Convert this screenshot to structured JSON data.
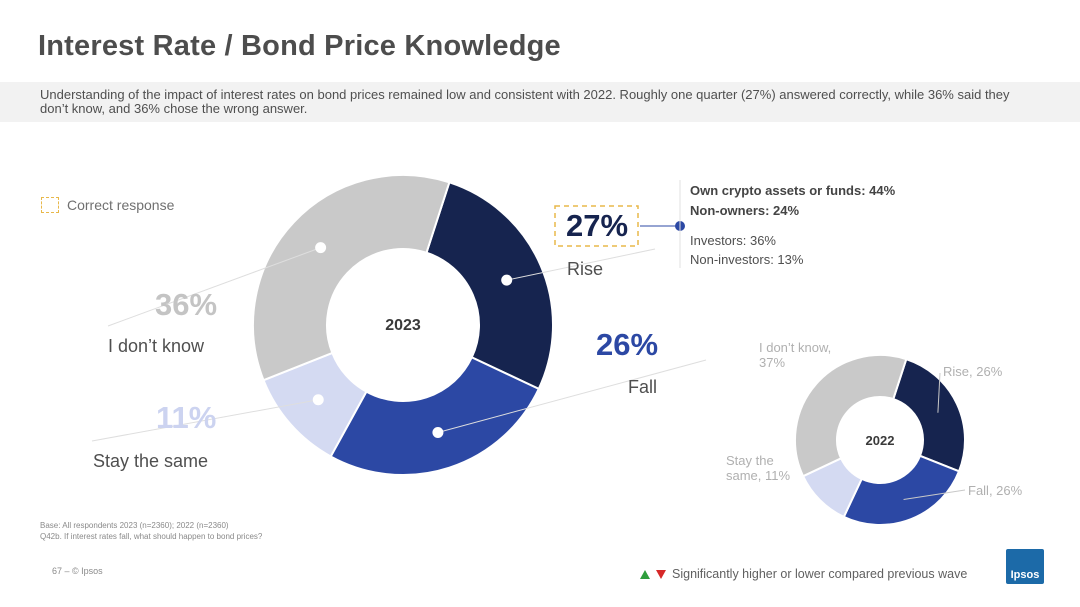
{
  "header": {
    "title": "Interest Rate / Bond Price Knowledge",
    "subtitle": "Understanding of the impact of interest rates on bond prices remained low and consistent with 2022. Roughly one quarter (27%) answered correctly, while 36% said they don’t know, and 36% chose the wrong answer."
  },
  "legend": {
    "correct_response": "Correct response",
    "correct_color": "#e8b84a"
  },
  "chart_data": [
    {
      "type": "pie",
      "variant": "donut",
      "center_label": "2023",
      "categories": [
        "Rise",
        "Fall",
        "Stay the same",
        "I don’t know"
      ],
      "values": [
        27,
        26,
        11,
        36
      ],
      "value_labels": [
        "27%",
        "26%",
        "11%",
        "36%"
      ],
      "colors": [
        "#16244f",
        "#2c48a4",
        "#d4daf2",
        "#c9c9c9"
      ],
      "correct": "Rise"
    },
    {
      "type": "pie",
      "variant": "donut",
      "center_label": "2022",
      "categories": [
        "Rise",
        "Fall",
        "Stay the same",
        "I don’t know"
      ],
      "values": [
        26,
        26,
        11,
        37
      ],
      "labels": [
        "Rise, 26%",
        "Fall, 26%",
        "Stay the same, 11%",
        "I don’t know, 37%"
      ],
      "colors": [
        "#16244f",
        "#2c48a4",
        "#d4daf2",
        "#c9c9c9"
      ]
    }
  ],
  "callout": {
    "line1": "Own crypto assets or funds: 44%",
    "line2": "Non-owners: 24%",
    "line3": "Investors: 36%",
    "line4": "Non-investors: 13%"
  },
  "footnote": {
    "base": "Base: All respondents 2023 (n=2360); 2022 (n=2360)",
    "question": "Q42b. If interest rates fall, what should happen to bond prices?"
  },
  "footer": {
    "page": "67 –  © Ipsos",
    "significance": "Significantly higher or lower compared previous wave",
    "logo": "Ipsos"
  }
}
